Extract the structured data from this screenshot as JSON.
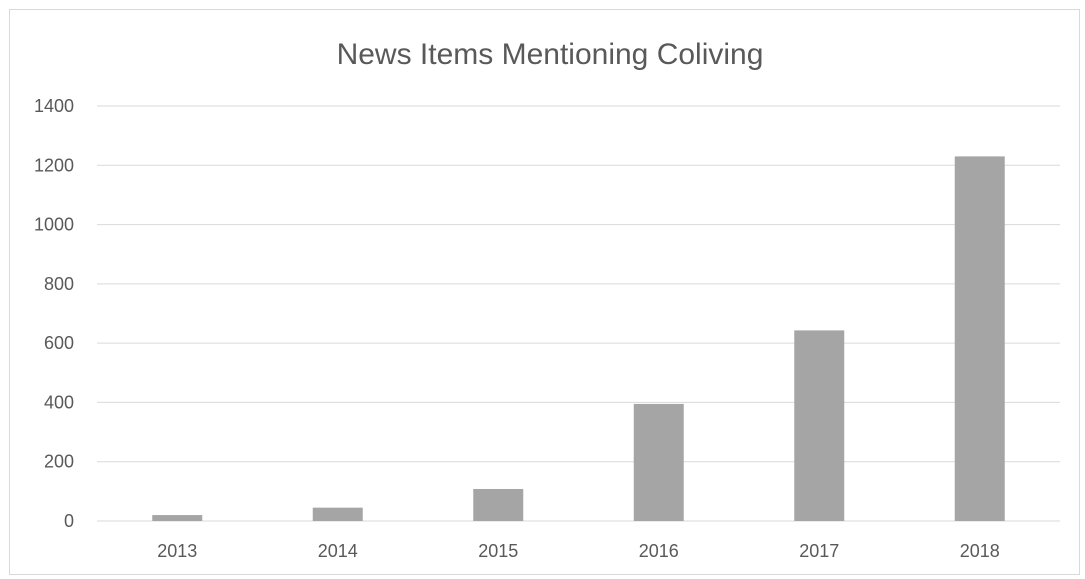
{
  "chart_data": {
    "type": "bar",
    "title": "News Items Mentioning Coliving",
    "xlabel": "",
    "ylabel": "",
    "categories": [
      "2013",
      "2014",
      "2015",
      "2016",
      "2017",
      "2018"
    ],
    "values": [
      20,
      45,
      108,
      395,
      643,
      1230
    ],
    "ylim": [
      0,
      1400
    ],
    "yticks": [
      0,
      200,
      400,
      600,
      800,
      1000,
      1200,
      1400
    ],
    "grid": true,
    "legend": "none",
    "bar_color": "#a5a5a5",
    "grid_color": "#d9d9d9"
  }
}
